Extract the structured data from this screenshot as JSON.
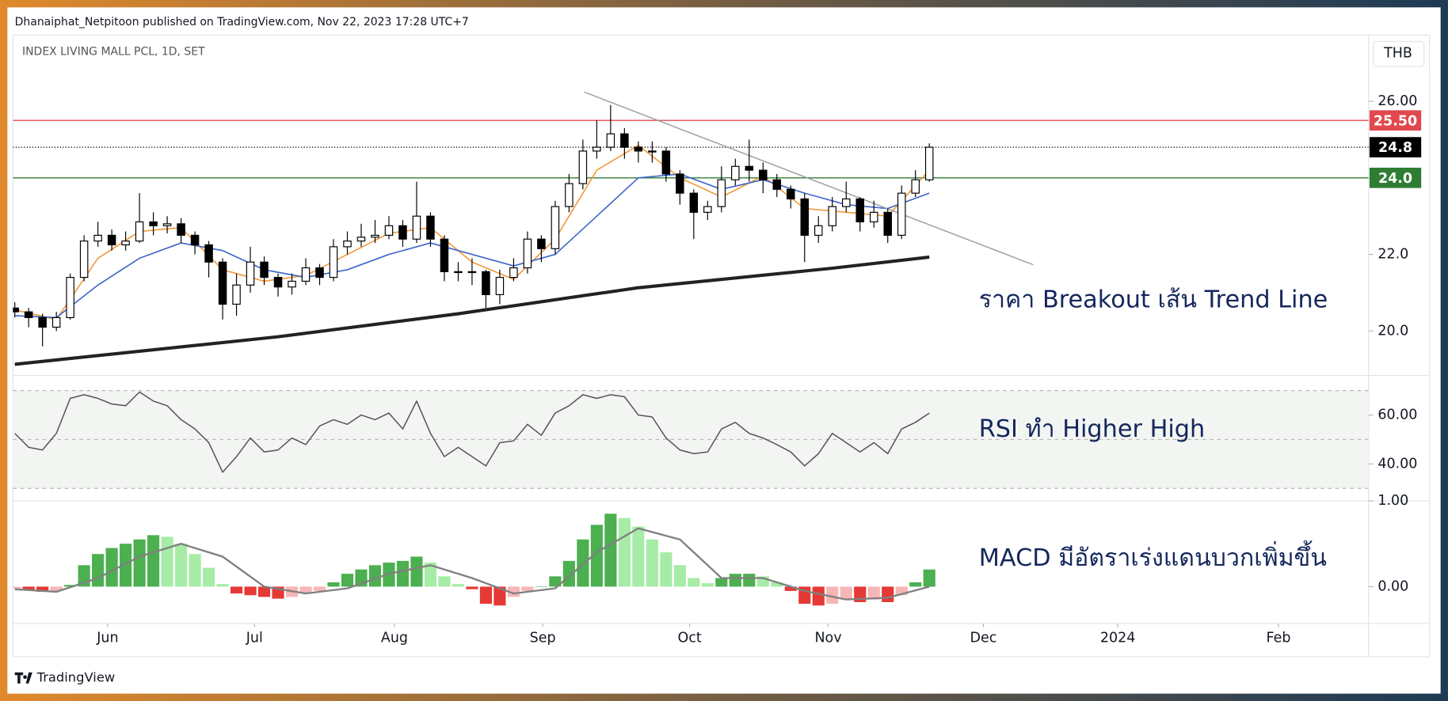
{
  "header": {
    "publisher": "Dhanaiphat_Netpitoon published on TradingView.com, Nov 22, 2023 17:28 UTC+7",
    "currency": "THB",
    "brand": "TradingView"
  },
  "chart_data": [
    {
      "type": "candlestick",
      "title": "INDEX LIVING MALL PCL, 1D, SET",
      "annotation": "ราคา Breakout เส้น Trend Line",
      "up_color": "#ffffff",
      "down_color": "#000000",
      "edge_color": "#000000",
      "open": [
        20.6,
        20.5,
        20.35,
        20.1,
        20.35,
        21.4,
        22.35,
        22.5,
        22.25,
        22.35,
        22.85,
        22.75,
        22.8,
        22.5,
        22.25,
        21.8,
        20.7,
        21.2,
        21.8,
        21.4,
        21.15,
        21.3,
        21.65,
        21.4,
        22.2,
        22.35,
        22.45,
        22.5,
        22.75,
        22.4,
        23.0,
        22.4,
        21.55,
        21.55,
        21.55,
        20.95,
        21.4,
        21.65,
        22.4,
        22.15,
        23.25,
        23.85,
        24.7,
        24.8,
        25.15,
        24.8,
        24.7,
        24.7,
        24.1,
        23.6,
        23.1,
        23.25,
        23.95,
        24.3,
        24.2,
        23.95,
        23.7,
        23.45,
        22.5,
        22.75,
        23.25,
        23.45,
        22.85,
        23.1,
        22.5,
        23.6,
        23.95
      ],
      "high": [
        20.75,
        20.6,
        20.45,
        20.5,
        21.5,
        22.5,
        22.85,
        22.65,
        22.6,
        23.6,
        23.1,
        23.0,
        22.95,
        22.6,
        22.35,
        21.9,
        21.5,
        22.2,
        21.95,
        21.5,
        21.5,
        21.9,
        21.75,
        22.4,
        22.6,
        22.8,
        22.9,
        23.0,
        22.9,
        23.9,
        23.1,
        22.5,
        21.8,
        21.9,
        21.6,
        21.6,
        21.9,
        22.6,
        22.5,
        23.4,
        24.1,
        25.0,
        25.5,
        25.9,
        25.3,
        24.95,
        24.95,
        24.8,
        24.2,
        23.7,
        23.4,
        24.3,
        24.5,
        25.0,
        24.4,
        24.1,
        23.8,
        23.6,
        23.0,
        23.5,
        23.9,
        23.5,
        23.4,
        23.2,
        23.8,
        24.2,
        24.9
      ],
      "low": [
        20.35,
        20.1,
        19.6,
        20.0,
        20.3,
        21.3,
        22.2,
        22.1,
        22.1,
        22.3,
        22.5,
        22.55,
        22.3,
        22.0,
        21.4,
        20.3,
        20.4,
        21.0,
        21.2,
        20.9,
        20.95,
        21.2,
        21.2,
        21.3,
        22.0,
        22.2,
        22.3,
        22.4,
        22.2,
        22.3,
        22.2,
        21.3,
        21.3,
        21.2,
        20.6,
        20.7,
        21.3,
        21.5,
        21.8,
        22.0,
        23.1,
        23.7,
        24.5,
        24.7,
        24.5,
        24.4,
        24.4,
        23.9,
        23.3,
        22.4,
        22.9,
        23.1,
        23.8,
        23.9,
        23.6,
        23.5,
        23.2,
        21.8,
        22.3,
        22.6,
        23.1,
        22.6,
        22.7,
        22.3,
        22.4,
        23.5,
        23.9
      ],
      "close": [
        20.5,
        20.35,
        20.1,
        20.35,
        21.4,
        22.35,
        22.5,
        22.25,
        22.35,
        22.85,
        22.75,
        22.8,
        22.5,
        22.25,
        21.8,
        20.7,
        21.2,
        21.8,
        21.4,
        21.15,
        21.3,
        21.65,
        21.4,
        22.2,
        22.35,
        22.45,
        22.5,
        22.75,
        22.4,
        23.0,
        22.4,
        21.55,
        21.55,
        21.55,
        20.95,
        21.4,
        21.65,
        22.4,
        22.15,
        23.25,
        23.85,
        24.7,
        24.8,
        25.15,
        24.8,
        24.7,
        24.7,
        24.1,
        23.6,
        23.1,
        23.25,
        23.95,
        24.3,
        24.2,
        23.95,
        23.7,
        23.45,
        22.5,
        22.75,
        23.25,
        23.45,
        22.85,
        23.1,
        22.5,
        23.6,
        23.95,
        24.8
      ],
      "series": [
        {
          "color": "#f29a3a",
          "width": 1.4,
          "x": [
            0,
            3,
            6,
            9,
            12,
            15,
            18,
            21,
            24,
            27,
            30,
            33,
            36,
            39,
            42,
            45,
            48,
            51,
            54,
            57,
            60,
            63,
            66
          ],
          "values": [
            20.55,
            20.3,
            21.9,
            22.6,
            22.7,
            21.6,
            21.3,
            21.45,
            22.0,
            22.55,
            22.7,
            21.8,
            21.35,
            22.4,
            24.2,
            24.85,
            24.0,
            23.5,
            24.05,
            23.2,
            23.1,
            23.0,
            24.2
          ]
        },
        {
          "color": "#3f67c9",
          "width": 1.4,
          "x": [
            0,
            3,
            6,
            9,
            12,
            15,
            18,
            21,
            24,
            27,
            30,
            33,
            36,
            39,
            42,
            45,
            48,
            51,
            54,
            57,
            60,
            63,
            66
          ],
          "values": [
            20.4,
            20.35,
            21.2,
            21.9,
            22.3,
            22.1,
            21.6,
            21.4,
            21.6,
            22.0,
            22.3,
            22.0,
            21.7,
            22.0,
            23.0,
            24.0,
            24.1,
            23.7,
            23.95,
            23.6,
            23.3,
            23.2,
            23.6
          ]
        },
        {
          "color": "#222222",
          "width": 3.5,
          "x": [
            0,
            19,
            32,
            45,
            59,
            66
          ],
          "values": [
            19.13,
            19.85,
            20.45,
            21.13,
            21.64,
            21.93
          ]
        },
        {
          "color": "#9a9a9a",
          "width": 1.2,
          "x": [
            41.1,
            73.5
          ],
          "values": [
            26.24,
            21.73
          ]
        }
      ],
      "price_lines": [
        {
          "value": 25.5,
          "label": "25.50",
          "color": "#e0484d",
          "style": "solid"
        },
        {
          "value": 24.8,
          "label": "24.8",
          "color": "#000000",
          "style": "dotted"
        },
        {
          "value": 24.0,
          "label": "24.0",
          "color": "#2f7d32",
          "style": "solid"
        }
      ],
      "xlim": [
        0,
        97.7
      ],
      "ylim": [
        18.84,
        27.73
      ],
      "yticks": [
        {
          "value": 26,
          "label": "26.00"
        },
        {
          "value": 22,
          "label": "22.0"
        },
        {
          "value": 20,
          "label": "20.0"
        }
      ]
    },
    {
      "type": "line",
      "annotation": "RSI ทำ Higher High",
      "color": "#555555",
      "values": [
        52.5,
        46.8,
        45.7,
        52.5,
        66.8,
        68.3,
        66.8,
        64.5,
        63.8,
        69.4,
        65.7,
        63.8,
        58.1,
        54.3,
        48.7,
        36.6,
        43,
        50.6,
        44.9,
        45.7,
        50.6,
        47.9,
        55.5,
        58.1,
        56.2,
        60,
        58.1,
        60.8,
        54.3,
        65.7,
        52.5,
        43,
        46.8,
        43,
        39.2,
        48.7,
        49.4,
        56.2,
        51.7,
        60.8,
        63.8,
        68.3,
        66.8,
        68.3,
        67.5,
        60,
        59.2,
        50.6,
        45.7,
        44.2,
        44.9,
        54.3,
        57,
        52.5,
        50.6,
        47.9,
        44.9,
        39.2,
        44.2,
        52.5,
        48.7,
        44.9,
        48.7,
        44.2,
        54.3,
        57,
        60.8
      ],
      "levels": [
        70,
        50,
        30
      ],
      "band_color": "#f3f5f3",
      "xlim": [
        0,
        97.7
      ],
      "ylim": [
        24.9,
        76.2
      ],
      "yticks": [
        {
          "value": 60,
          "label": "60.00"
        },
        {
          "value": 40,
          "label": "40.00"
        }
      ]
    },
    {
      "type": "histogram",
      "annotation": "MACD มีอัตราเร่งแดนบวกเพิ่มขึ้น",
      "values": [
        -0.02,
        -0.04,
        -0.06,
        -0.05,
        0.02,
        0.25,
        0.38,
        0.45,
        0.5,
        0.55,
        0.6,
        0.58,
        0.5,
        0.38,
        0.22,
        0.03,
        -0.08,
        -0.1,
        -0.12,
        -0.14,
        -0.12,
        -0.08,
        -0.05,
        0.05,
        0.15,
        0.2,
        0.25,
        0.28,
        0.3,
        0.35,
        0.28,
        0.12,
        0.03,
        -0.03,
        -0.2,
        -0.22,
        -0.12,
        -0.05,
        0.0,
        0.12,
        0.3,
        0.55,
        0.72,
        0.85,
        0.8,
        0.7,
        0.55,
        0.4,
        0.25,
        0.1,
        0.04,
        0.1,
        0.15,
        0.15,
        0.12,
        0.05,
        -0.05,
        -0.2,
        -0.22,
        -0.2,
        -0.15,
        -0.18,
        -0.15,
        -0.18,
        -0.1,
        0.05,
        0.2
      ],
      "hist_colors": {
        "pos_rising": "#4caf50",
        "pos_falling": "#a6eca6",
        "neg_falling": "#e53935",
        "neg_rising": "#f7b6b6"
      },
      "series": [
        {
          "color": "#808080",
          "width": 2,
          "x": [
            0,
            3,
            6,
            9,
            12,
            15,
            18,
            21,
            24,
            27,
            30,
            33,
            36,
            39,
            42,
            45,
            48,
            51,
            54,
            57,
            60,
            63,
            66
          ],
          "values": [
            -0.03,
            -0.06,
            0.1,
            0.35,
            0.5,
            0.35,
            0.0,
            -0.08,
            -0.02,
            0.15,
            0.25,
            0.1,
            -0.08,
            -0.02,
            0.4,
            0.68,
            0.55,
            0.1,
            0.1,
            -0.05,
            -0.15,
            -0.13,
            0.0
          ]
        }
      ],
      "xlim": [
        0,
        97.7
      ],
      "ylim": [
        -0.43,
        1.0
      ],
      "yticks": [
        {
          "value": 1,
          "label": "1.00"
        },
        {
          "value": 0,
          "label": "0.00"
        }
      ],
      "xticks": [
        {
          "value": 6.7,
          "label": "Jun"
        },
        {
          "value": 17.3,
          "label": "Jul"
        },
        {
          "value": 27.4,
          "label": "Aug"
        },
        {
          "value": 38.1,
          "label": "Sep"
        },
        {
          "value": 48.7,
          "label": "Oct"
        },
        {
          "value": 58.7,
          "label": "Nov"
        },
        {
          "value": 69.9,
          "label": "Dec"
        },
        {
          "value": 79.6,
          "label": "2024"
        },
        {
          "value": 91.2,
          "label": "Feb"
        }
      ]
    }
  ]
}
